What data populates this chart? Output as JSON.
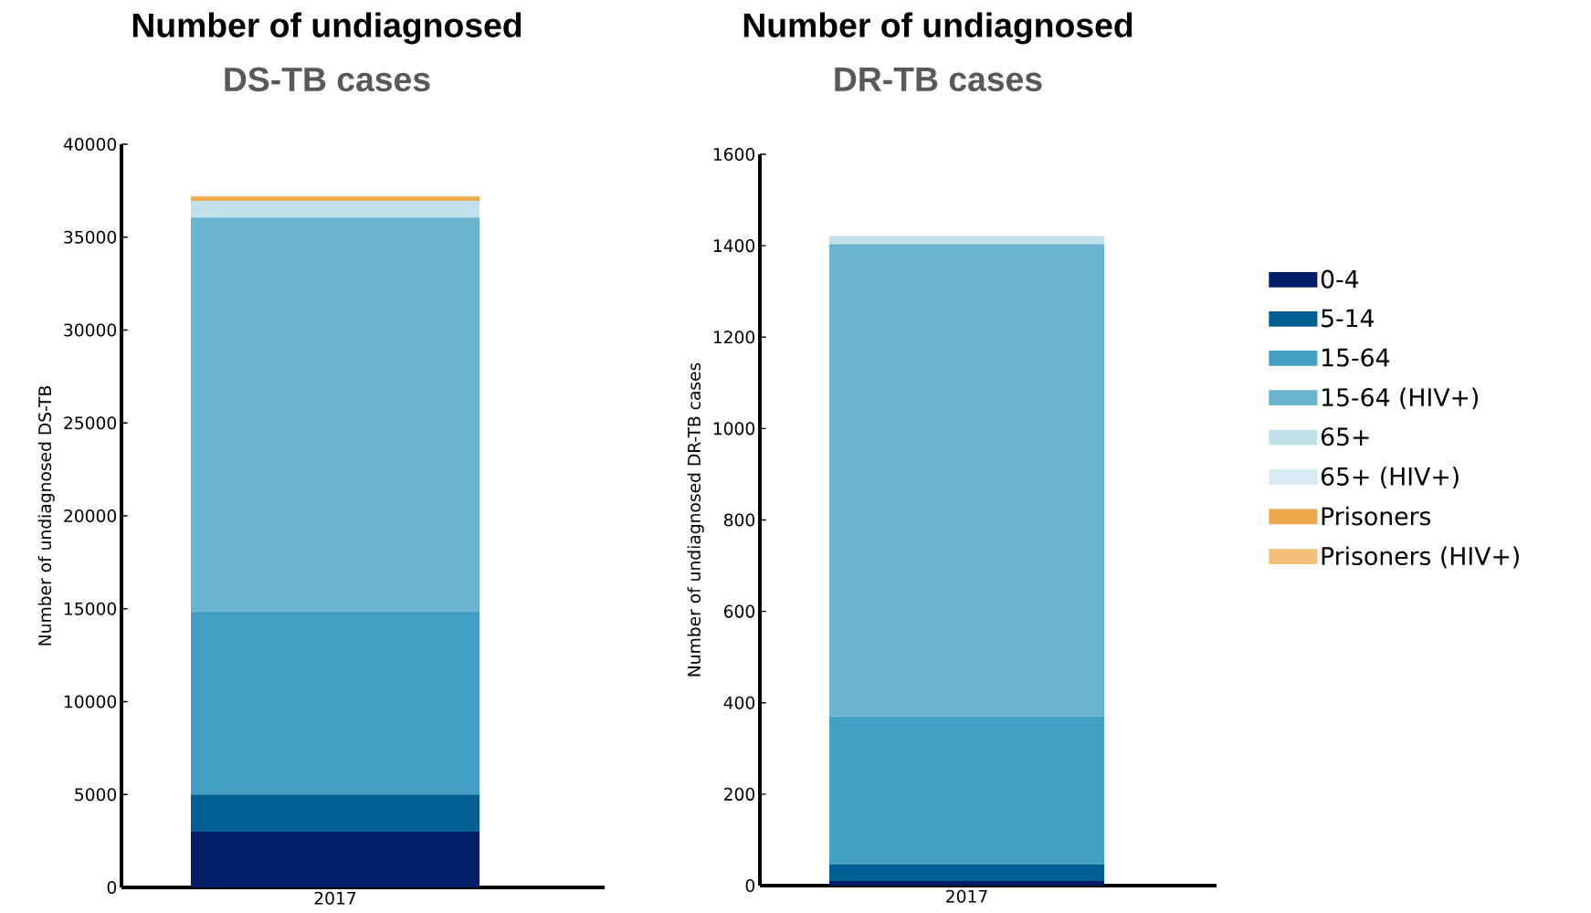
{
  "chart_data": [
    {
      "type": "bar",
      "title": "Number of undiagnosed",
      "subtitle": "DS-TB cases",
      "ylabel": "Number of undiagnosed DS-TB",
      "categories": [
        "2017"
      ],
      "stacked": true,
      "ylim": [
        0,
        40000
      ],
      "yticks": [
        0,
        5000,
        10000,
        15000,
        20000,
        25000,
        30000,
        35000,
        40000
      ],
      "legend": false,
      "series": [
        {
          "color": "#001f66",
          "values": [
            3000
          ]
        },
        {
          "color": "#005f94",
          "values": [
            2000
          ]
        },
        {
          "color": "#43a0c2",
          "values": [
            9850
          ]
        },
        {
          "color": "#68b3cf",
          "values": [
            21200
          ]
        },
        {
          "color": "#c0e0ea",
          "values": [
            900
          ]
        },
        {
          "color": "#d6ebf2",
          "values": [
            null
          ]
        },
        {
          "color": "#f0a84c",
          "values": [
            200
          ]
        },
        {
          "color": "#f4bf7a",
          "values": [
            60
          ]
        }
      ]
    },
    {
      "type": "bar",
      "title": "Number of undiagnosed",
      "subtitle": "DR-TB cases",
      "ylabel": "Number of undiagnosed DR-TB cases",
      "categories": [
        "2017"
      ],
      "stacked": true,
      "ylim": [
        0,
        1600
      ],
      "yticks": [
        0,
        200,
        400,
        600,
        800,
        1000,
        1200,
        1400,
        1600
      ],
      "legend": "right",
      "series": [
        {
          "name": "0-4",
          "color": "#001f66",
          "values": [
            10
          ]
        },
        {
          "name": "5-14",
          "color": "#005f94",
          "values": [
            37
          ]
        },
        {
          "name": "15-64",
          "color": "#43a0c2",
          "values": [
            323
          ]
        },
        {
          "name": "15-64 (HIV+)",
          "color": "#68b3cf",
          "values": [
            1033
          ]
        },
        {
          "name": "65+",
          "color": "#c0e0ea",
          "values": [
            18
          ]
        },
        {
          "name": "65+ (HIV+)",
          "color": "#d6ebf2",
          "values": [
            null
          ]
        },
        {
          "name": "Prisoners",
          "color": "#f0a84c",
          "values": [
            0
          ]
        },
        {
          "name": "Prisoners (HIV+)",
          "color": "#f4bf7a",
          "values": [
            0
          ]
        }
      ]
    }
  ]
}
